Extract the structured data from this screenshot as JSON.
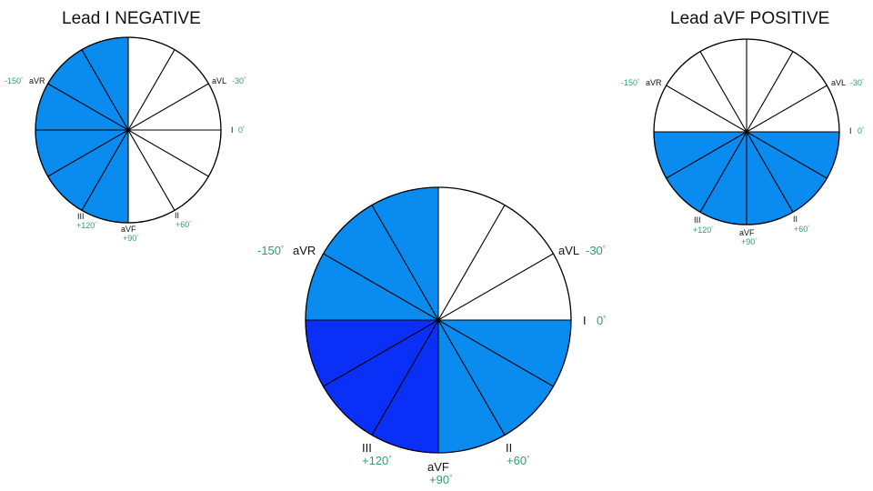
{
  "titles": {
    "left": "Lead I NEGATIVE",
    "right": "Lead aVF POSITIVE"
  },
  "colors": {
    "light_blue": "#0a8bf0",
    "dark_blue": "#0a30f7",
    "white": "#ffffff",
    "outline": "#000000",
    "degree_text": "#2e9e6e"
  },
  "leads": [
    {
      "name": "I",
      "angle": "0",
      "angle_deg": 0
    },
    {
      "name": "aVL",
      "angle": "-30",
      "angle_deg": -30
    },
    {
      "name": "aVR",
      "angle": "-150",
      "angle_deg": -150
    },
    {
      "name": "II",
      "angle": "+60",
      "angle_deg": 60
    },
    {
      "name": "aVF",
      "angle": "+90",
      "angle_deg": 90
    },
    {
      "name": "III",
      "angle": "+120",
      "angle_deg": 120
    }
  ],
  "degree_symbol": "°",
  "wheels": [
    {
      "id": "left",
      "description_shading": "left half shaded",
      "shaded_sectors": [
        {
          "from_deg": 90,
          "to_deg": 270,
          "color": "light_blue"
        }
      ]
    },
    {
      "id": "right",
      "description_shading": "lower half shaded",
      "shaded_sectors": [
        {
          "from_deg": 0,
          "to_deg": 180,
          "color": "light_blue"
        }
      ]
    },
    {
      "id": "center",
      "description_shading": "quadrants combined",
      "shaded_sectors": [
        {
          "from_deg": 0,
          "to_deg": 90,
          "color": "light_blue"
        },
        {
          "from_deg": 90,
          "to_deg": 180,
          "color": "dark_blue"
        },
        {
          "from_deg": 180,
          "to_deg": 270,
          "color": "light_blue"
        }
      ]
    }
  ]
}
